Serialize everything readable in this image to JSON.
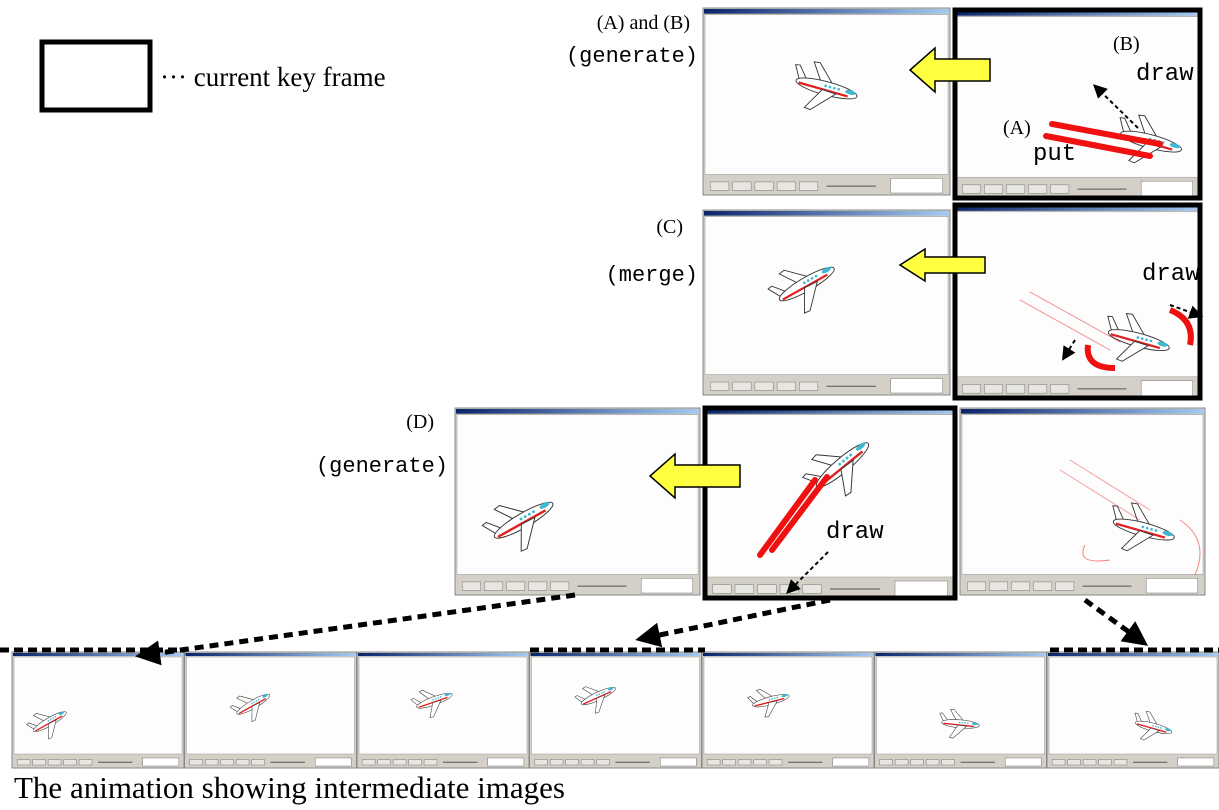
{
  "legend": {
    "label": "··· current key frame"
  },
  "steps": [
    {
      "label": "(A) and (B)",
      "operation": "(generate)",
      "annotations": [
        "(B)",
        "draw",
        "(A)",
        "put"
      ]
    },
    {
      "label": "(C)",
      "operation": "(merge)",
      "annotations": [
        "draw"
      ]
    },
    {
      "label": "(D)",
      "operation": "(generate)",
      "annotations": [
        "draw"
      ]
    }
  ],
  "caption": "The animation showing intermediate images"
}
